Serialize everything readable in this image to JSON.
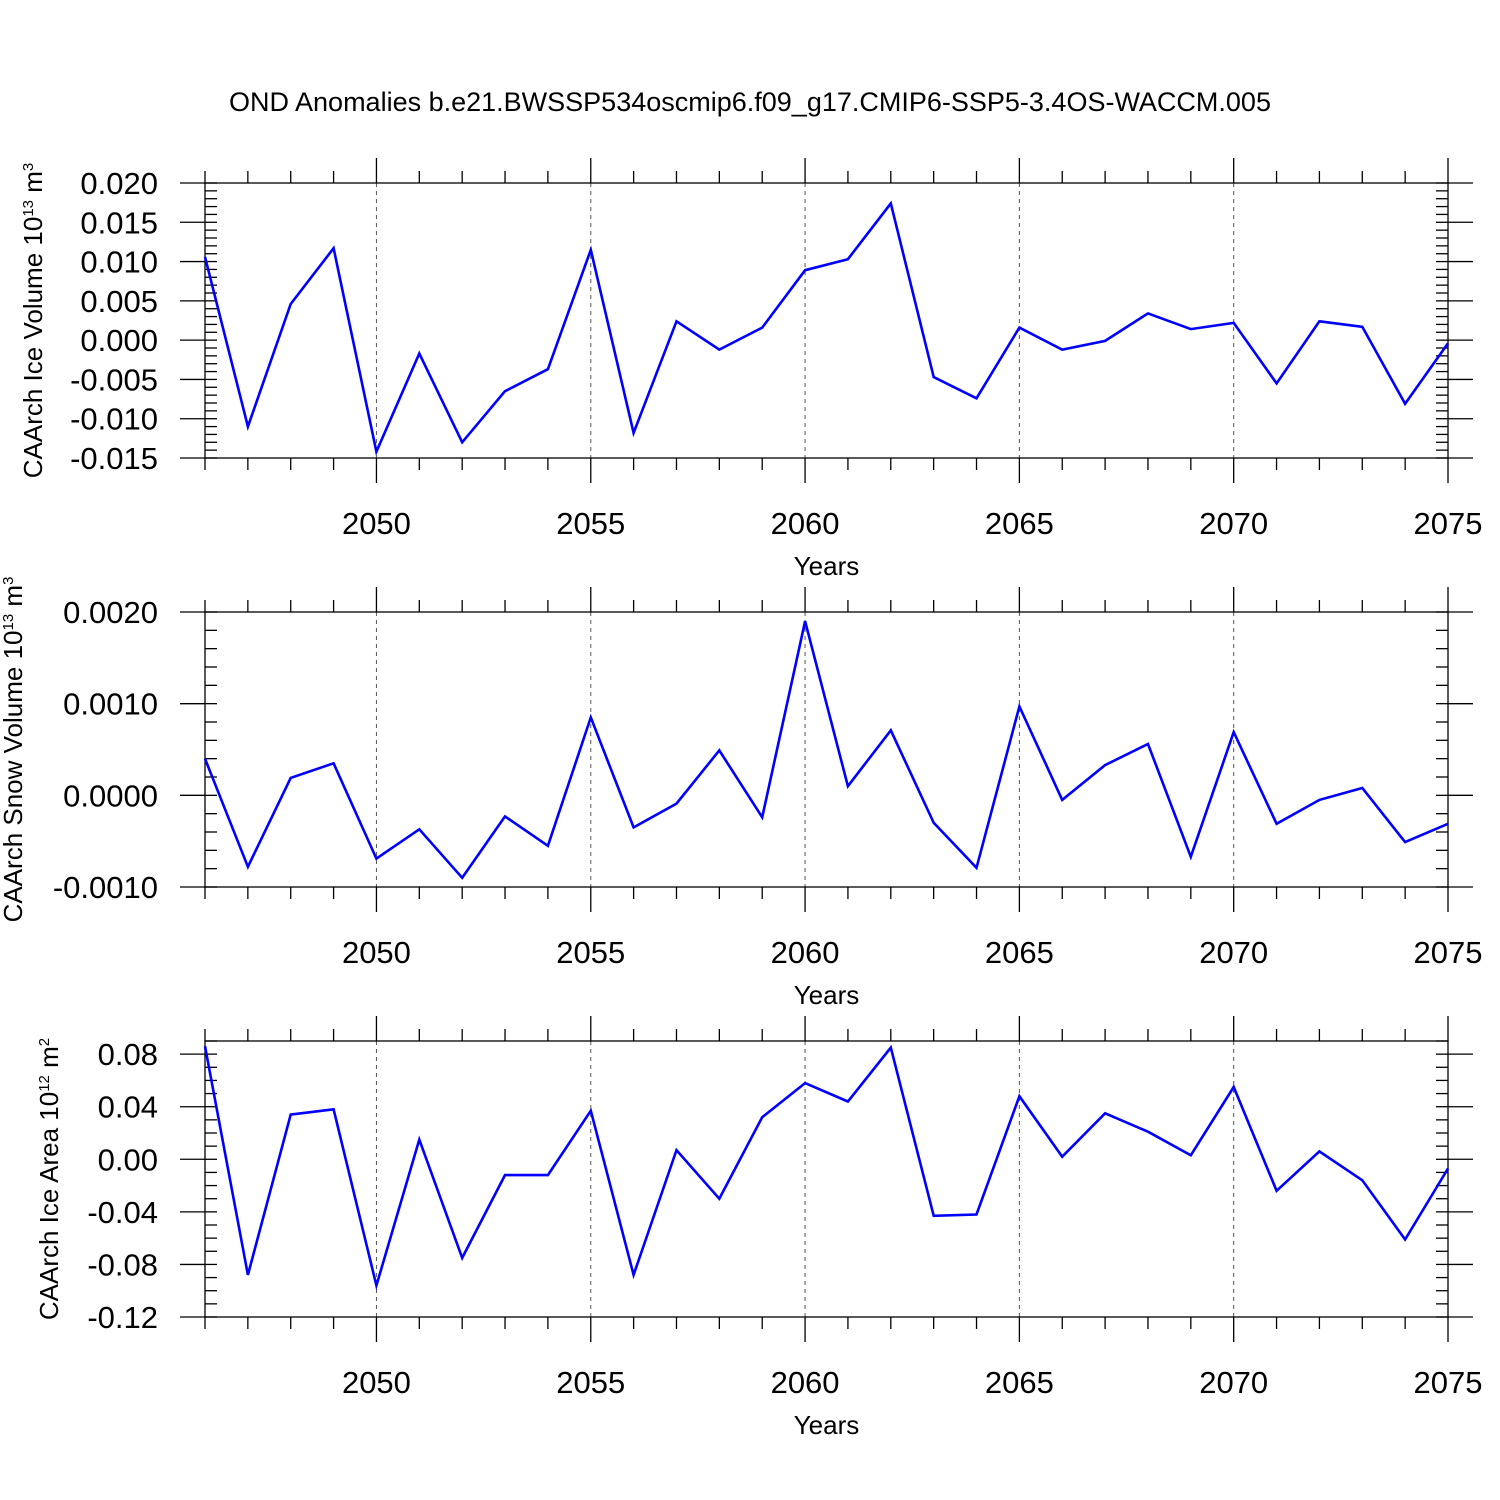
{
  "title": "OND Anomalies b.e21.BWSSP534oscmip6.f09_g17.CMIP6-SSP5-3.4OS-WACCM.005",
  "line_color": "#0000ff",
  "chart_data": [
    {
      "type": "line",
      "xlabel": "Years",
      "ylabel": {
        "prefix": "CAArch Ice Volume 10",
        "exponent": "13",
        "unit": " m",
        "unit_exponent": "3"
      },
      "xlim": [
        2046,
        2075
      ],
      "ylim": [
        -0.015,
        0.02
      ],
      "xticks": [
        2050,
        2055,
        2060,
        2065,
        2070,
        2075
      ],
      "xtick_labels": [
        "2050",
        "2055",
        "2060",
        "2065",
        "2070",
        "2075"
      ],
      "yticks": [
        -0.015,
        -0.01,
        -0.005,
        0.0,
        0.005,
        0.01,
        0.015,
        0.02
      ],
      "ytick_labels": [
        "-0.015",
        "-0.010",
        "-0.005",
        "0.000",
        "0.005",
        "0.010",
        "0.015",
        "0.020"
      ],
      "yminor_step": 0.001,
      "grid": "vertical dashed at major x ticks",
      "x": [
        2046,
        2047,
        2048,
        2049,
        2050,
        2051,
        2052,
        2053,
        2054,
        2055,
        2056,
        2057,
        2058,
        2059,
        2060,
        2061,
        2062,
        2063,
        2064,
        2065,
        2066,
        2067,
        2068,
        2069,
        2070,
        2071,
        2072,
        2073,
        2074,
        2075
      ],
      "values": [
        0.0106,
        -0.011,
        0.0046,
        0.0117,
        -0.0142,
        -0.0017,
        -0.013,
        -0.0065,
        -0.0037,
        0.0115,
        -0.0118,
        0.0024,
        -0.0012,
        0.0016,
        0.0089,
        0.0103,
        0.0174,
        -0.0047,
        -0.0074,
        0.0016,
        -0.0012,
        -0.0001,
        0.0034,
        0.0014,
        0.0022,
        -0.0055,
        0.0024,
        0.0017,
        -0.0081,
        -0.0004
      ]
    },
    {
      "type": "line",
      "xlabel": "Years",
      "ylabel": {
        "prefix": "CAArch Snow Volume 10",
        "exponent": "13",
        "unit": " m",
        "unit_exponent": "3"
      },
      "xlim": [
        2046,
        2075
      ],
      "ylim": [
        -0.001,
        0.002
      ],
      "xticks": [
        2050,
        2055,
        2060,
        2065,
        2070,
        2075
      ],
      "xtick_labels": [
        "2050",
        "2055",
        "2060",
        "2065",
        "2070",
        "2075"
      ],
      "yticks": [
        -0.001,
        0.0,
        0.001,
        0.002
      ],
      "ytick_labels": [
        "-0.0010",
        "0.0000",
        "0.0010",
        "0.0020"
      ],
      "yminor_step": 0.0002,
      "grid": "vertical dashed at major x ticks",
      "x": [
        2046,
        2047,
        2048,
        2049,
        2050,
        2051,
        2052,
        2053,
        2054,
        2055,
        2056,
        2057,
        2058,
        2059,
        2060,
        2061,
        2062,
        2063,
        2064,
        2065,
        2066,
        2067,
        2068,
        2069,
        2070,
        2071,
        2072,
        2073,
        2074,
        2075
      ],
      "values": [
        0.0004,
        -0.00078,
        0.00019,
        0.00035,
        -0.00069,
        -0.00037,
        -0.0009,
        -0.00023,
        -0.00055,
        0.00085,
        -0.00035,
        -9e-05,
        0.00049,
        -0.00024,
        0.0019,
        0.0001,
        0.00071,
        -0.0003,
        -0.00079,
        0.00097,
        -5e-05,
        0.00033,
        0.00056,
        -0.00067,
        0.00069,
        -0.00031,
        -5e-05,
        8e-05,
        -0.00051,
        -0.00031
      ]
    },
    {
      "type": "line",
      "xlabel": "Years",
      "ylabel": {
        "prefix": "CAArch Ice Area 10",
        "exponent": "12",
        "unit": " m",
        "unit_exponent": "2"
      },
      "xlim": [
        2046,
        2075
      ],
      "ylim": [
        -0.12,
        0.09
      ],
      "xticks": [
        2050,
        2055,
        2060,
        2065,
        2070,
        2075
      ],
      "xtick_labels": [
        "2050",
        "2055",
        "2060",
        "2065",
        "2070",
        "2075"
      ],
      "yticks": [
        -0.12,
        -0.08,
        -0.04,
        0.0,
        0.04,
        0.08
      ],
      "ytick_labels": [
        "-0.12",
        "-0.08",
        "-0.04",
        "0.00",
        "0.04",
        "0.08"
      ],
      "yminor_step": 0.01,
      "grid": "vertical dashed at major x ticks",
      "x": [
        2046,
        2047,
        2048,
        2049,
        2050,
        2051,
        2052,
        2053,
        2054,
        2055,
        2056,
        2057,
        2058,
        2059,
        2060,
        2061,
        2062,
        2063,
        2064,
        2065,
        2066,
        2067,
        2068,
        2069,
        2070,
        2071,
        2072,
        2073,
        2074,
        2075
      ],
      "values": [
        0.086,
        -0.088,
        0.034,
        0.038,
        -0.096,
        0.015,
        -0.075,
        -0.012,
        -0.012,
        0.037,
        -0.088,
        0.007,
        -0.03,
        0.032,
        0.058,
        0.044,
        0.085,
        -0.043,
        -0.042,
        0.048,
        0.002,
        0.035,
        0.021,
        0.003,
        0.055,
        -0.024,
        0.006,
        -0.016,
        -0.061,
        -0.007
      ]
    }
  ]
}
